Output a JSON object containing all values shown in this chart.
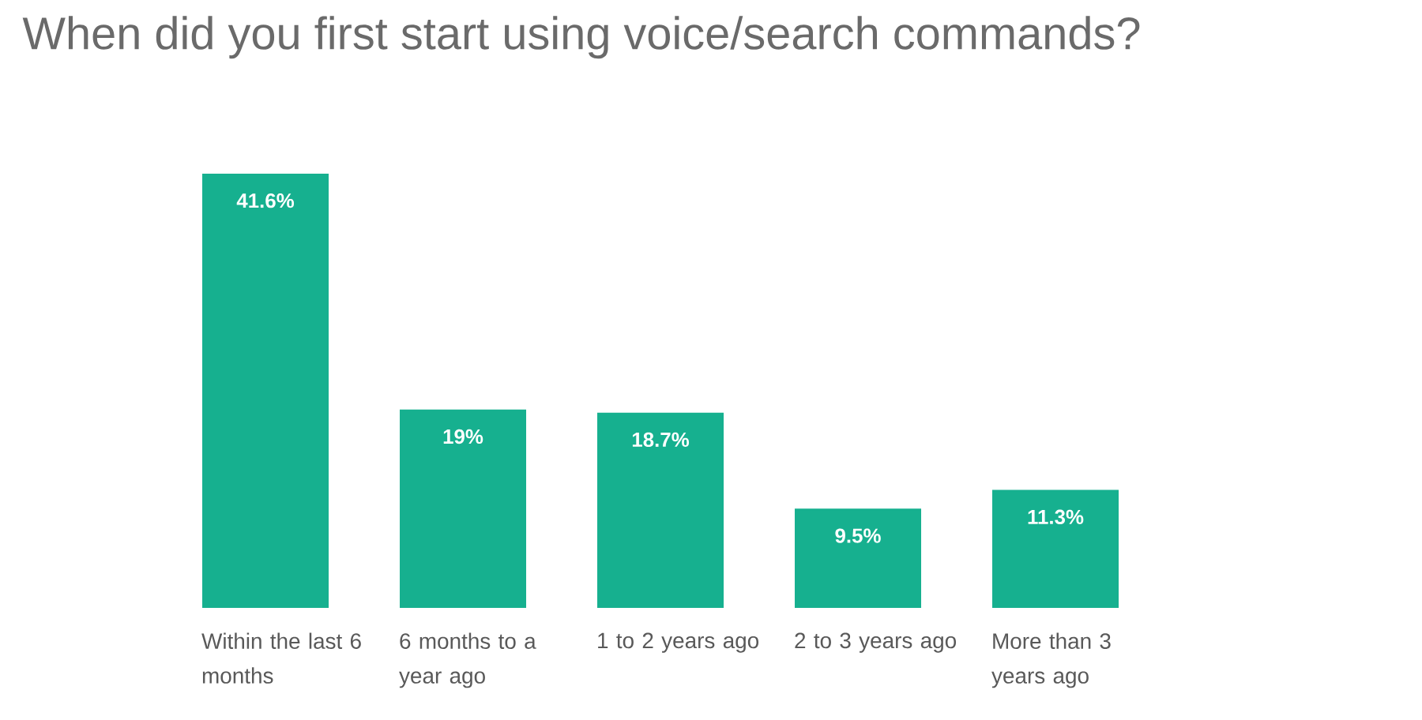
{
  "chart_data": {
    "type": "bar",
    "title": "When did you first start using voice/search commands?",
    "categories": [
      "Within the last 6 months",
      "6 months to a year ago",
      "1 to 2 years ago",
      "2 to 3 years ago",
      "More than 3 years ago"
    ],
    "values": [
      41.6,
      19,
      18.7,
      9.5,
      11.3
    ],
    "value_labels": [
      "41.6%",
      "19%",
      "18.7%",
      "9.5%",
      "11.3%"
    ],
    "color": "#16b08f"
  }
}
